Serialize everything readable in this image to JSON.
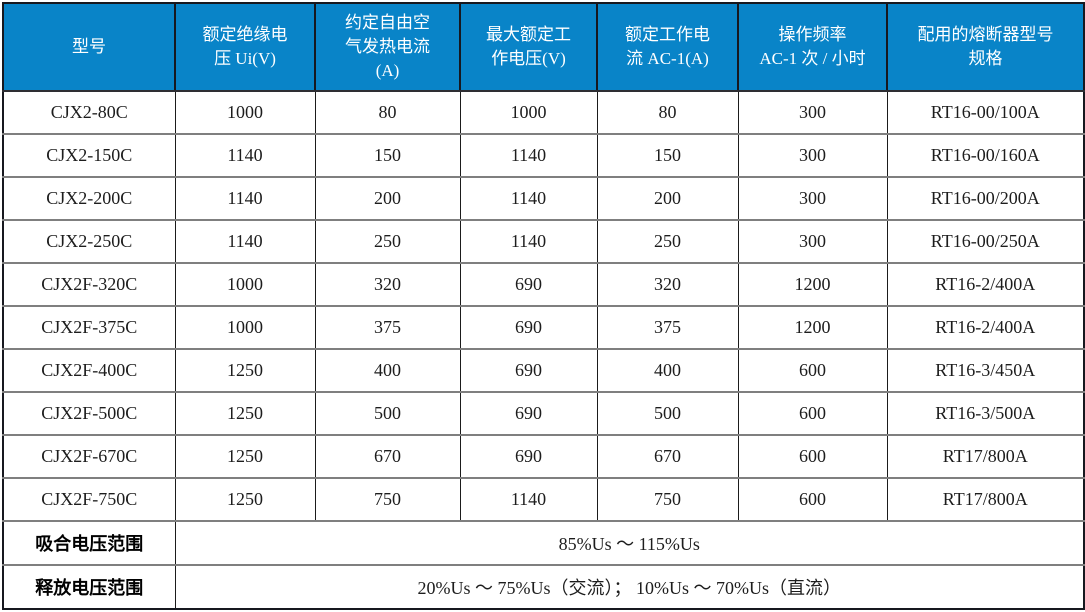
{
  "colors": {
    "header_background": "#0984c8",
    "header_text": "#ffffff",
    "grid_horizontal": "#7f7f7f",
    "grid_vertical": "#1b1b1b",
    "outer_border": "#17181f",
    "body_text": "#1d1d1d"
  },
  "table": {
    "headers": [
      "型号",
      "额定绝缘电\n压 Ui(V)",
      "约定自由空\n气发热电流\n(A)",
      "最大额定工\n作电压(V)",
      "额定工作电\n流 AC-1(A)",
      "操作频率\nAC-1 次 / 小时",
      "配用的熔断器型号\n规格"
    ],
    "rows": [
      [
        "CJX2-80C",
        "1000",
        "80",
        "1000",
        "80",
        "300",
        "RT16-00/100A"
      ],
      [
        "CJX2-150C",
        "1140",
        "150",
        "1140",
        "150",
        "300",
        "RT16-00/160A"
      ],
      [
        "CJX2-200C",
        "1140",
        "200",
        "1140",
        "200",
        "300",
        "RT16-00/200A"
      ],
      [
        "CJX2-250C",
        "1140",
        "250",
        "1140",
        "250",
        "300",
        "RT16-00/250A"
      ],
      [
        "CJX2F-320C",
        "1000",
        "320",
        "690",
        "320",
        "1200",
        "RT16-2/400A"
      ],
      [
        "CJX2F-375C",
        "1000",
        "375",
        "690",
        "375",
        "1200",
        "RT16-2/400A"
      ],
      [
        "CJX2F-400C",
        "1250",
        "400",
        "690",
        "400",
        "600",
        "RT16-3/450A"
      ],
      [
        "CJX2F-500C",
        "1250",
        "500",
        "690",
        "500",
        "600",
        "RT16-3/500A"
      ],
      [
        "CJX2F-670C",
        "1250",
        "670",
        "690",
        "670",
        "600",
        "RT17/800A"
      ],
      [
        "CJX2F-750C",
        "1250",
        "750",
        "1140",
        "750",
        "600",
        "RT17/800A"
      ]
    ],
    "footer": [
      {
        "label": "吸合电压范围",
        "value": "85%Us ～ 115%Us"
      },
      {
        "label": "释放电压范围",
        "value": "20%Us ～ 75%Us（交流）； 10%Us ～ 70%Us（直流）"
      }
    ]
  }
}
